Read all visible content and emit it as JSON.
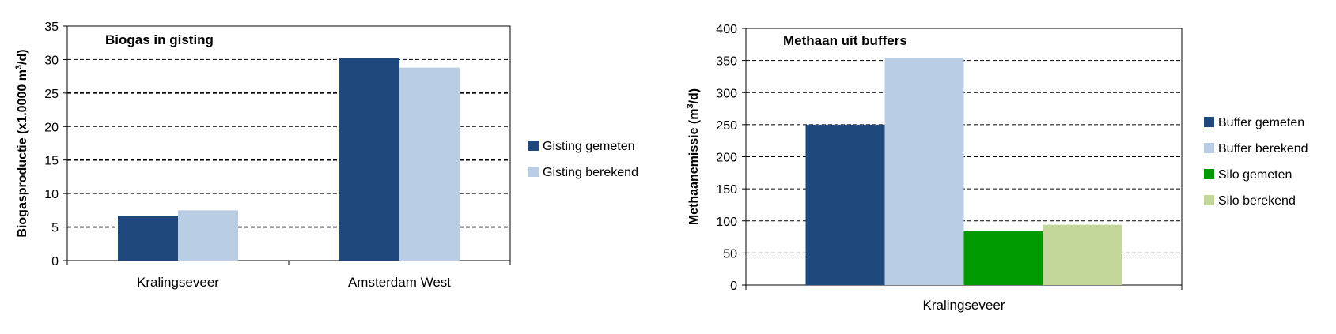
{
  "chart_data": [
    {
      "type": "bar",
      "title": "Biogas in gisting",
      "ylabel": "Biogasproductie (x1.0000 m",
      "ylabel_sup": "3",
      "ylabel_tail": "/d)",
      "ylim": [
        0,
        35
      ],
      "yticks": [
        0,
        5,
        10,
        15,
        20,
        25,
        30,
        35
      ],
      "grid": true,
      "legend_position": "right",
      "categories": [
        "Kralingseveer",
        "Amsterdam West"
      ],
      "series": [
        {
          "name": "Gisting gemeten",
          "color": "#1F497D",
          "values": [
            6.7,
            30.2
          ]
        },
        {
          "name": "Gisting berekend",
          "color": "#B9CDE5",
          "values": [
            7.5,
            28.8
          ]
        }
      ]
    },
    {
      "type": "bar",
      "title": "Methaan uit buffers",
      "ylabel": "Methaanemissie (m",
      "ylabel_sup": "3",
      "ylabel_tail": "/d)",
      "ylim": [
        0,
        400
      ],
      "yticks": [
        0,
        50,
        100,
        150,
        200,
        250,
        300,
        350,
        400
      ],
      "grid": true,
      "legend_position": "right",
      "categories": [
        "Kralingseveer"
      ],
      "series": [
        {
          "name": "Buffer gemeten",
          "color": "#1F497D",
          "values": [
            250
          ]
        },
        {
          "name": "Buffer berekend",
          "color": "#B9CDE5",
          "values": [
            354
          ]
        },
        {
          "name": "Silo gemeten",
          "color": "#009900",
          "values": [
            84
          ]
        },
        {
          "name": "Silo berekend",
          "color": "#C4D79B",
          "values": [
            94
          ]
        }
      ]
    }
  ]
}
